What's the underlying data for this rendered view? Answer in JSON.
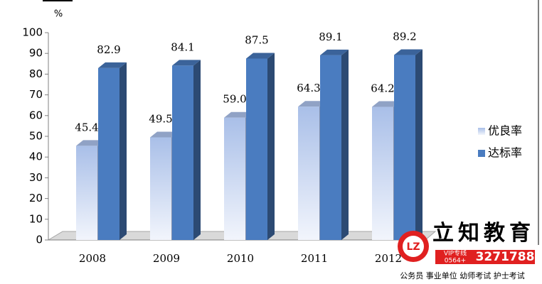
{
  "chart_data": {
    "type": "bar3d",
    "y_label": "%",
    "categories": [
      "2008",
      "2009",
      "2010",
      "2011",
      "2012"
    ],
    "series": [
      {
        "name": "优良率",
        "color": "#a9bfe8",
        "values": [
          45.4,
          49.5,
          59,
          64.3,
          64.2
        ],
        "value_labels": [
          "45.4",
          "49.5",
          "59.0",
          "64.3",
          "64.2"
        ]
      },
      {
        "name": "达标率",
        "color": "#4a7cc0",
        "values": [
          82.9,
          84.1,
          87.5,
          89.1,
          89.2
        ],
        "value_labels": [
          "82.9",
          "84.1",
          "87.5",
          "89.1",
          "89.2"
        ]
      }
    ],
    "ylim": [
      0,
      100
    ],
    "yticks": [
      0,
      10,
      20,
      30,
      40,
      50,
      60,
      70,
      80,
      90,
      100
    ],
    "grid": false,
    "legend": "right"
  },
  "watermark": {
    "logo": "LZ",
    "brand": "立知教育",
    "hotline": "VIP专线",
    "area_code": "0564+",
    "phone": "3271788",
    "services": "公务员 事业单位 幼师考试 护士考试"
  }
}
